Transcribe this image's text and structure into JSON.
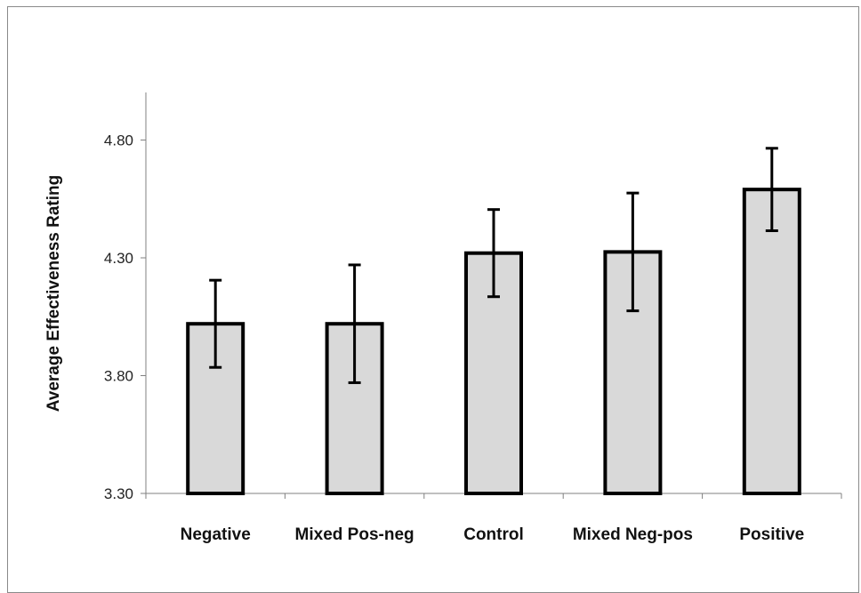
{
  "chart_data": {
    "type": "bar",
    "title": "",
    "xlabel": "",
    "ylabel": "Average  Effectiveness Rating",
    "categories": [
      "Negative",
      "Mixed Pos-neg",
      "Control",
      "Mixed Neg-pos",
      "Positive"
    ],
    "values": [
      4.02,
      4.02,
      4.32,
      4.325,
      4.59
    ],
    "errors": [
      0.185,
      0.25,
      0.185,
      0.25,
      0.175
    ],
    "ylim": [
      3.3,
      5.0
    ],
    "yticks": [
      3.3,
      3.8,
      4.3,
      4.8
    ],
    "ytick_labels": [
      "3.30",
      "3.80",
      "4.30",
      "4.80"
    ],
    "grid": false,
    "colors": {
      "bar_fill": "#d9d9d9",
      "bar_stroke": "#000000",
      "axis": "#808080"
    }
  }
}
